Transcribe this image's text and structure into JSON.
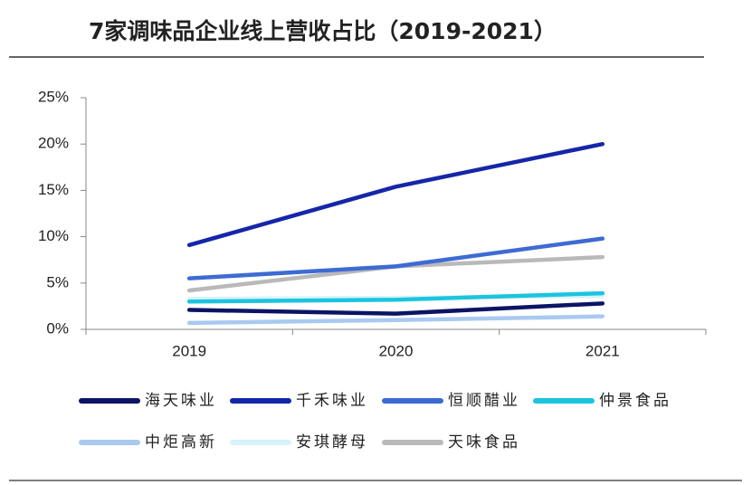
{
  "chart_data": {
    "type": "line",
    "title": "7家调味品企业线上营收占比（2019-2021）",
    "categories": [
      "2019",
      "2020",
      "2021"
    ],
    "series": [
      {
        "name": "海天味业",
        "color": "#0b1464",
        "values": [
          2.1,
          1.7,
          2.8
        ]
      },
      {
        "name": "千禾味业",
        "color": "#1626a8",
        "values": [
          9.1,
          15.4,
          20.0
        ]
      },
      {
        "name": "恒顺醋业",
        "color": "#3e6bd3",
        "values": [
          5.5,
          6.8,
          9.8
        ]
      },
      {
        "name": "仲景食品",
        "color": "#1cc4de",
        "values": [
          3.0,
          3.2,
          3.9
        ]
      },
      {
        "name": "中炬高新",
        "color": "#a9c9f1",
        "values": [
          0.7,
          1.0,
          1.4
        ]
      },
      {
        "name": "安琪酵母",
        "color": "#d6f3fa",
        "values": [
          3.3,
          3.4,
          3.6
        ]
      },
      {
        "name": "天味食品",
        "color": "#b9b9b9",
        "values": [
          4.2,
          6.8,
          7.8
        ]
      }
    ],
    "ylim": [
      0,
      25
    ],
    "yticks": [
      {
        "value": 0,
        "label": "0%"
      },
      {
        "value": 5,
        "label": "5%"
      },
      {
        "value": 10,
        "label": "10%"
      },
      {
        "value": 15,
        "label": "15%"
      },
      {
        "value": 20,
        "label": "20%"
      },
      {
        "value": 25,
        "label": "25%"
      }
    ]
  }
}
